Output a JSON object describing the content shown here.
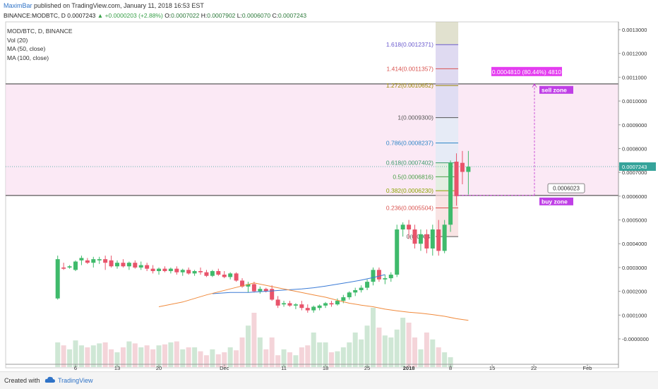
{
  "header": {
    "author": "MaximBar",
    "published": "published on TradingView.com, January 11, 2018 16:53 EST",
    "symbol": "BINANCE:MODBTC, D",
    "last": "0.0007243",
    "change": "+0.0000203 (+2.88%)",
    "open_label": "O:",
    "open": "0.0007022",
    "high_label": "H:",
    "high": "0.0007902",
    "low_label": "L:",
    "low": "0.0006070",
    "close_label": "C:",
    "close": "0.0007243"
  },
  "legend": {
    "line1": "MOD/BTC, D, BINANCE",
    "line2": "Vol (20)",
    "line3": "MA (50, close)",
    "line4": "MA (100, close)"
  },
  "footer": {
    "created_with": "Created with",
    "brand": "TradingView"
  },
  "colors": {
    "up": "#3fba6b",
    "down": "#e8546b",
    "vol_up": "#cfe7d5",
    "vol_down": "#f4d4d9",
    "ma50": "#f08a3c",
    "ma100": "#3b7bd6",
    "zone": "#f9e1f1",
    "price_line": "#35a39a",
    "price_badge": "#35a39a",
    "label_bg": "#bf3fe6",
    "sell_box": "#e43df0"
  },
  "chart_data": {
    "type": "candlestick",
    "ylim": [
      -5e-05,
      0.0013
    ],
    "yticks": [
      "0.0013000",
      "0.0012000",
      "0.0011000",
      "0.0010000",
      "0.0009000",
      "0.0008000",
      "0.0007000",
      "0.0006000",
      "0.0005000",
      "0.0004000",
      "0.0003000",
      "0.0002000",
      "0.0001000",
      "-0.0000000"
    ],
    "ytick_values": [
      0.0013,
      0.0012,
      0.0011,
      0.001,
      0.0009,
      0.0008,
      0.0007,
      0.0006,
      0.0005,
      0.0004,
      0.0003,
      0.0002,
      0.0001,
      0
    ],
    "xticks": [
      "6",
      "13",
      "20",
      "Dec",
      "11",
      "18",
      "25",
      "2018",
      "8",
      "15",
      "22",
      "Feb"
    ],
    "xtick_days": [
      0,
      7,
      14,
      25,
      35,
      42,
      49,
      56,
      63,
      70,
      77,
      86
    ],
    "current_price": "0.0007243",
    "current_price_value": 0.0007243,
    "candles": [
      {
        "d": -3,
        "o": 0.00017,
        "h": 0.00035,
        "l": 0.000165,
        "c": 0.000335
      },
      {
        "d": -2,
        "o": 0.0003,
        "h": 0.00032,
        "l": 0.00029,
        "c": 0.000295
      },
      {
        "d": -1,
        "o": 0.0003,
        "h": 0.00031,
        "l": 0.000295,
        "c": 0.000305
      },
      {
        "d": 0,
        "o": 0.00029,
        "h": 0.00033,
        "l": 0.000285,
        "c": 0.000325
      },
      {
        "d": 1,
        "o": 0.00033,
        "h": 0.00035,
        "l": 0.00031,
        "c": 0.00034
      },
      {
        "d": 2,
        "o": 0.00033,
        "h": 0.00034,
        "l": 0.000315,
        "c": 0.00032
      },
      {
        "d": 3,
        "o": 0.00032,
        "h": 0.000345,
        "l": 0.0003,
        "c": 0.000335
      },
      {
        "d": 4,
        "o": 0.00033,
        "h": 0.000345,
        "l": 0.000315,
        "c": 0.000335
      },
      {
        "d": 5,
        "o": 0.000335,
        "h": 0.00035,
        "l": 0.00029,
        "c": 0.00032
      },
      {
        "d": 6,
        "o": 0.00033,
        "h": 0.00035,
        "l": 0.0003,
        "c": 0.000305
      },
      {
        "d": 7,
        "o": 0.000305,
        "h": 0.00033,
        "l": 0.000295,
        "c": 0.00032
      },
      {
        "d": 8,
        "o": 0.00032,
        "h": 0.000335,
        "l": 0.0003,
        "c": 0.000305
      },
      {
        "d": 9,
        "o": 0.000305,
        "h": 0.000325,
        "l": 0.00029,
        "c": 0.00032
      },
      {
        "d": 10,
        "o": 0.00032,
        "h": 0.00033,
        "l": 0.000295,
        "c": 0.0003
      },
      {
        "d": 11,
        "o": 0.0003,
        "h": 0.000325,
        "l": 0.00029,
        "c": 0.00031
      },
      {
        "d": 12,
        "o": 0.00031,
        "h": 0.00032,
        "l": 0.000285,
        "c": 0.000295
      },
      {
        "d": 13,
        "o": 0.000295,
        "h": 0.00031,
        "l": 0.000275,
        "c": 0.000285
      },
      {
        "d": 14,
        "o": 0.000285,
        "h": 0.0003,
        "l": 0.00027,
        "c": 0.000295
      },
      {
        "d": 15,
        "o": 0.000295,
        "h": 0.000305,
        "l": 0.00028,
        "c": 0.000285
      },
      {
        "d": 16,
        "o": 0.000285,
        "h": 0.0003,
        "l": 0.000275,
        "c": 0.000295
      },
      {
        "d": 17,
        "o": 0.000295,
        "h": 0.000305,
        "l": 0.00027,
        "c": 0.00028
      },
      {
        "d": 18,
        "o": 0.00028,
        "h": 0.000295,
        "l": 0.000265,
        "c": 0.00029
      },
      {
        "d": 19,
        "o": 0.00029,
        "h": 0.0003,
        "l": 0.00027,
        "c": 0.000275
      },
      {
        "d": 20,
        "o": 0.000275,
        "h": 0.00029,
        "l": 0.000265,
        "c": 0.000285
      },
      {
        "d": 21,
        "o": 0.000285,
        "h": 0.0003,
        "l": 0.00027,
        "c": 0.00028
      },
      {
        "d": 22,
        "o": 0.00028,
        "h": 0.00029,
        "l": 0.00026,
        "c": 0.000265
      },
      {
        "d": 23,
        "o": 0.000265,
        "h": 0.00029,
        "l": 0.00026,
        "c": 0.000285
      },
      {
        "d": 24,
        "o": 0.000285,
        "h": 0.000295,
        "l": 0.000265,
        "c": 0.00027
      },
      {
        "d": 25,
        "o": 0.00027,
        "h": 0.000285,
        "l": 0.000255,
        "c": 0.00026
      },
      {
        "d": 26,
        "o": 0.00026,
        "h": 0.00028,
        "l": 0.00025,
        "c": 0.000275
      },
      {
        "d": 27,
        "o": 0.000275,
        "h": 0.00028,
        "l": 0.00024,
        "c": 0.000245
      },
      {
        "d": 28,
        "o": 0.000245,
        "h": 0.000255,
        "l": 0.000215,
        "c": 0.00022
      },
      {
        "d": 29,
        "o": 0.00022,
        "h": 0.00024,
        "l": 0.000195,
        "c": 0.00023
      },
      {
        "d": 30,
        "o": 0.00023,
        "h": 0.00024,
        "l": 0.000195,
        "c": 0.0002
      },
      {
        "d": 31,
        "o": 0.0002,
        "h": 0.00022,
        "l": 0.00019,
        "c": 0.00021
      },
      {
        "d": 32,
        "o": 0.00021,
        "h": 0.000215,
        "l": 0.000195,
        "c": 0.0002
      },
      {
        "d": 33,
        "o": 0.00021,
        "h": 0.000225,
        "l": 0.00016,
        "c": 0.000165
      },
      {
        "d": 34,
        "o": 0.000165,
        "h": 0.00018,
        "l": 0.00013,
        "c": 0.00014
      },
      {
        "d": 35,
        "o": 0.000145,
        "h": 0.00016,
        "l": 0.000135,
        "c": 0.00015
      },
      {
        "d": 36,
        "o": 0.00015,
        "h": 0.00016,
        "l": 0.000135,
        "c": 0.00014
      },
      {
        "d": 37,
        "o": 0.00014,
        "h": 0.00015,
        "l": 0.000125,
        "c": 0.000145
      },
      {
        "d": 38,
        "o": 0.000145,
        "h": 0.00016,
        "l": 0.00012,
        "c": 0.00013
      },
      {
        "d": 39,
        "o": 0.00013,
        "h": 0.000145,
        "l": 0.00011,
        "c": 0.00012
      },
      {
        "d": 40,
        "o": 0.00012,
        "h": 0.00014,
        "l": 0.00011,
        "c": 0.000135
      },
      {
        "d": 41,
        "o": 0.00013,
        "h": 0.000145,
        "l": 0.00012,
        "c": 0.00014
      },
      {
        "d": 42,
        "o": 0.00014,
        "h": 0.000155,
        "l": 0.00013,
        "c": 0.00015
      },
      {
        "d": 43,
        "o": 0.00015,
        "h": 0.00016,
        "l": 0.000135,
        "c": 0.000145
      },
      {
        "d": 44,
        "o": 0.000145,
        "h": 0.00017,
        "l": 0.00014,
        "c": 0.00016
      },
      {
        "d": 45,
        "o": 0.00016,
        "h": 0.000185,
        "l": 0.00015,
        "c": 0.000175
      },
      {
        "d": 46,
        "o": 0.000175,
        "h": 0.0002,
        "l": 0.000165,
        "c": 0.000195
      },
      {
        "d": 47,
        "o": 0.000195,
        "h": 0.000215,
        "l": 0.00018,
        "c": 0.000205
      },
      {
        "d": 48,
        "o": 0.000205,
        "h": 0.000225,
        "l": 0.000195,
        "c": 0.000215
      },
      {
        "d": 49,
        "o": 0.000215,
        "h": 0.00025,
        "l": 0.000205,
        "c": 0.00024
      },
      {
        "d": 50,
        "o": 0.00024,
        "h": 0.0003,
        "l": 0.000225,
        "c": 0.00029
      },
      {
        "d": 51,
        "o": 0.00029,
        "h": 0.0003,
        "l": 0.00024,
        "c": 0.00025
      },
      {
        "d": 52,
        "o": 0.00025,
        "h": 0.00027,
        "l": 0.00023,
        "c": 0.000255
      },
      {
        "d": 53,
        "o": 0.000255,
        "h": 0.00028,
        "l": 0.00024,
        "c": 0.00027
      },
      {
        "d": 54,
        "o": 0.00027,
        "h": 0.00048,
        "l": 0.00026,
        "c": 0.00046
      },
      {
        "d": 55,
        "o": 0.00046,
        "h": 0.00049,
        "l": 0.00043,
        "c": 0.00048
      },
      {
        "d": 56,
        "o": 0.00048,
        "h": 0.0005,
        "l": 0.00042,
        "c": 0.00046
      },
      {
        "d": 57,
        "o": 0.00046,
        "h": 0.00048,
        "l": 0.00038,
        "c": 0.0004
      },
      {
        "d": 58,
        "o": 0.0004,
        "h": 0.00046,
        "l": 0.00037,
        "c": 0.00044
      },
      {
        "d": 59,
        "o": 0.00044,
        "h": 0.00046,
        "l": 0.00036,
        "c": 0.00038
      },
      {
        "d": 60,
        "o": 0.00038,
        "h": 0.00048,
        "l": 0.00035,
        "c": 0.00046
      },
      {
        "d": 61,
        "o": 0.00046,
        "h": 0.0005,
        "l": 0.00035,
        "c": 0.00037
      },
      {
        "d": 62,
        "o": 0.00037,
        "h": 0.0005,
        "l": 0.00036,
        "c": 0.00048
      },
      {
        "d": 63,
        "o": 0.00048,
        "h": 0.00075,
        "l": 0.00045,
        "c": 0.00074
      },
      {
        "d": 64,
        "o": 0.000745,
        "h": 0.00078,
        "l": 0.00056,
        "c": 0.0006
      },
      {
        "d": 65,
        "o": 0.00074,
        "h": 0.00079,
        "l": 0.00065,
        "c": 0.000702
      },
      {
        "d": 66,
        "o": 0.000702,
        "h": 0.00079,
        "l": 0.000607,
        "c": 0.000724
      }
    ],
    "ma50": [
      [
        40,
        0.000135
      ],
      [
        44,
        0.000155
      ],
      [
        48,
        0.000185
      ],
      [
        52,
        0.00021
      ],
      [
        56,
        0.000235
      ],
      [
        60,
        0.000215
      ],
      [
        63,
        0.0002
      ],
      [
        66,
        0.000185
      ],
      [
        68,
        0.000175
      ],
      [
        70,
        0.000162
      ],
      [
        72,
        0.00015
      ],
      [
        74,
        0.000142
      ],
      [
        76,
        0.000135
      ],
      [
        78,
        0.000125
      ],
      [
        80,
        0.000118
      ],
      [
        82,
        0.000112
      ],
      [
        84,
        0.000108
      ],
      [
        86,
        0.000102
      ],
      [
        88,
        9.5e-05
      ],
      [
        90,
        8.5e-05
      ],
      [
        92,
        7.8e-05
      ]
    ],
    "ma50_note": "",
    "ma100": [
      [
        49,
        0.00019
      ],
      [
        52,
        0.000195
      ],
      [
        55,
        0.000195
      ],
      [
        58,
        0.0002
      ],
      [
        61,
        0.000205
      ],
      [
        64,
        0.00021
      ],
      [
        66,
        0.000215
      ],
      [
        68,
        0.000222
      ],
      [
        70,
        0.00023
      ],
      [
        72,
        0.000238
      ],
      [
        74,
        0.000247
      ],
      [
        76,
        0.000258
      ],
      [
        78,
        0.00027
      ]
    ],
    "volume": [
      0.25,
      0.22,
      0.18,
      0.27,
      0.22,
      0.2,
      0.22,
      0.24,
      0.25,
      0.18,
      0.15,
      0.2,
      0.26,
      0.24,
      0.2,
      0.22,
      0.18,
      0.22,
      0.23,
      0.25,
      0.26,
      0.18,
      0.2,
      0.2,
      0.16,
      0.12,
      0.18,
      0.13,
      0.15,
      0.2,
      0.17,
      0.3,
      0.42,
      0.55,
      0.3,
      0.18,
      0.3,
      0.12,
      0.18,
      0.15,
      0.12,
      0.2,
      0.22,
      0.35,
      0.25,
      0.25,
      0.15,
      0.16,
      0.2,
      0.25,
      0.35,
      0.28,
      0.42,
      0.6,
      0.4,
      0.32,
      0.3,
      0.38,
      0.5,
      0.45,
      0.3,
      0.18,
      0.35,
      0.28,
      0.2,
      0.15,
      0.1
    ],
    "fib_levels": [
      {
        "ratio": "1.618",
        "value": 0.0012371,
        "label": "1.618(0.0012371)",
        "color": "#6a5acd"
      },
      {
        "ratio": "1.414",
        "value": 0.0011357,
        "label": "1.414(0.0011357)",
        "color": "#d9534f"
      },
      {
        "ratio": "1.272",
        "value": 0.0010652,
        "label": "1.272(0.0010652)",
        "color": "#9c8a00"
      },
      {
        "ratio": "1",
        "value": 0.00093,
        "label": "1(0.0009300)",
        "color": "#555555"
      },
      {
        "ratio": "0.786",
        "value": 0.0008237,
        "label": "0.786(0.0008237)",
        "color": "#2f86c7"
      },
      {
        "ratio": "0.618",
        "value": 0.0007402,
        "label": "0.618(0.0007402)",
        "color": "#3a9a6a"
      },
      {
        "ratio": "0.5",
        "value": 0.0006816,
        "label": "0.5(0.0006816)",
        "color": "#4aa048"
      },
      {
        "ratio": "0.382",
        "value": 0.000623,
        "label": "0.382(0.0006230)",
        "color": "#8aa400"
      },
      {
        "ratio": "0.236",
        "value": 0.0005504,
        "label": "0.236(0.0005504)",
        "color": "#d9534f"
      },
      {
        "ratio": "0",
        "value": 0.00043,
        "label": "0(0.00043",
        "color": "#555555"
      }
    ],
    "sell_zone": {
      "label": "sell zone",
      "top": 0.001072,
      "bottom": 0.000603
    },
    "buy_zone": {
      "label": "buy zone",
      "value": 0.000603
    },
    "target_box": "0.0004810 (80.44%) 4810",
    "buy_box": "0.0006023"
  }
}
